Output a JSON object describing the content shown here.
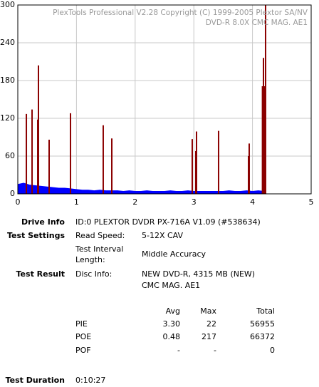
{
  "chart_data": {
    "type": "bar",
    "annotations": [
      "PlexTools Professional V2.28 Copyright (C) 1999-2005 Plextor SA/NV",
      "DVD-R   8.0X   CMC MAG. AE1"
    ],
    "xlim": [
      0,
      5
    ],
    "xticks": [
      0,
      1,
      2,
      3,
      4,
      5
    ],
    "ylim": [
      0,
      300
    ],
    "yticks": [
      0,
      60,
      120,
      180,
      240,
      300
    ],
    "grid": true,
    "series": [
      {
        "type": "area",
        "color": "#0000ff",
        "x": [
          0,
          0.1,
          0.2,
          0.3,
          0.4,
          0.5,
          0.6,
          0.7,
          0.8,
          0.9,
          1.0,
          1.1,
          1.2,
          1.3,
          1.4,
          1.5,
          1.6,
          1.7,
          1.8,
          1.9,
          2.0,
          2.1,
          2.2,
          2.3,
          2.4,
          2.5,
          2.6,
          2.7,
          2.8,
          2.9,
          3.0,
          3.1,
          3.2,
          3.3,
          3.4,
          3.5,
          3.6,
          3.7,
          3.8,
          3.9,
          4.0,
          4.1,
          4.2
        ],
        "values": [
          15,
          17,
          14,
          13,
          12,
          11,
          10,
          9,
          9,
          8,
          7,
          6,
          6,
          5,
          6,
          5,
          5,
          5,
          4,
          5,
          4,
          4,
          5,
          4,
          4,
          4,
          5,
          4,
          4,
          5,
          4,
          4,
          4,
          4,
          4,
          4,
          5,
          4,
          4,
          5,
          4,
          5,
          4
        ]
      },
      {
        "type": "spike",
        "color": "#8b0000",
        "x": [
          0.146,
          0.243,
          0.34,
          0.352,
          0.534,
          0.898,
          1.456,
          1.602,
          2.973,
          3.034,
          3.046,
          3.422,
          3.932,
          3.944,
          4.17,
          4.18,
          4.187,
          4.2,
          4.223
        ],
        "values": [
          127,
          134,
          118,
          204,
          86,
          128,
          109,
          88,
          87,
          68,
          99,
          100,
          60,
          80,
          171,
          171,
          216,
          171,
          300
        ]
      }
    ]
  },
  "report": {
    "drive_info_label": "Drive Info",
    "drive_info": "ID:0 PLEXTOR DVDR PX-716A V1.09 (#538634)",
    "test_settings_label": "Test Settings",
    "read_speed_label": "Read Speed:",
    "read_speed": "5-12X CAV",
    "interval_label": [
      "Test Interval",
      "Length:"
    ],
    "interval": "Middle Accuracy",
    "test_result_label": "Test Result",
    "disc_info_label": "Disc Info:",
    "disc_info": [
      "NEW DVD-R, 4315 MB (NEW)",
      "CMC MAG. AE1"
    ],
    "stats_headers": [
      "Avg",
      "Max",
      "Total"
    ],
    "stats_rows": [
      [
        "PIE",
        "3.30",
        "22",
        "56955"
      ],
      [
        "POE",
        "0.48",
        "217",
        "66372"
      ],
      [
        "POF",
        "-",
        "-",
        "0"
      ]
    ],
    "duration_label": "Test Duration",
    "duration": "0:10:27"
  }
}
